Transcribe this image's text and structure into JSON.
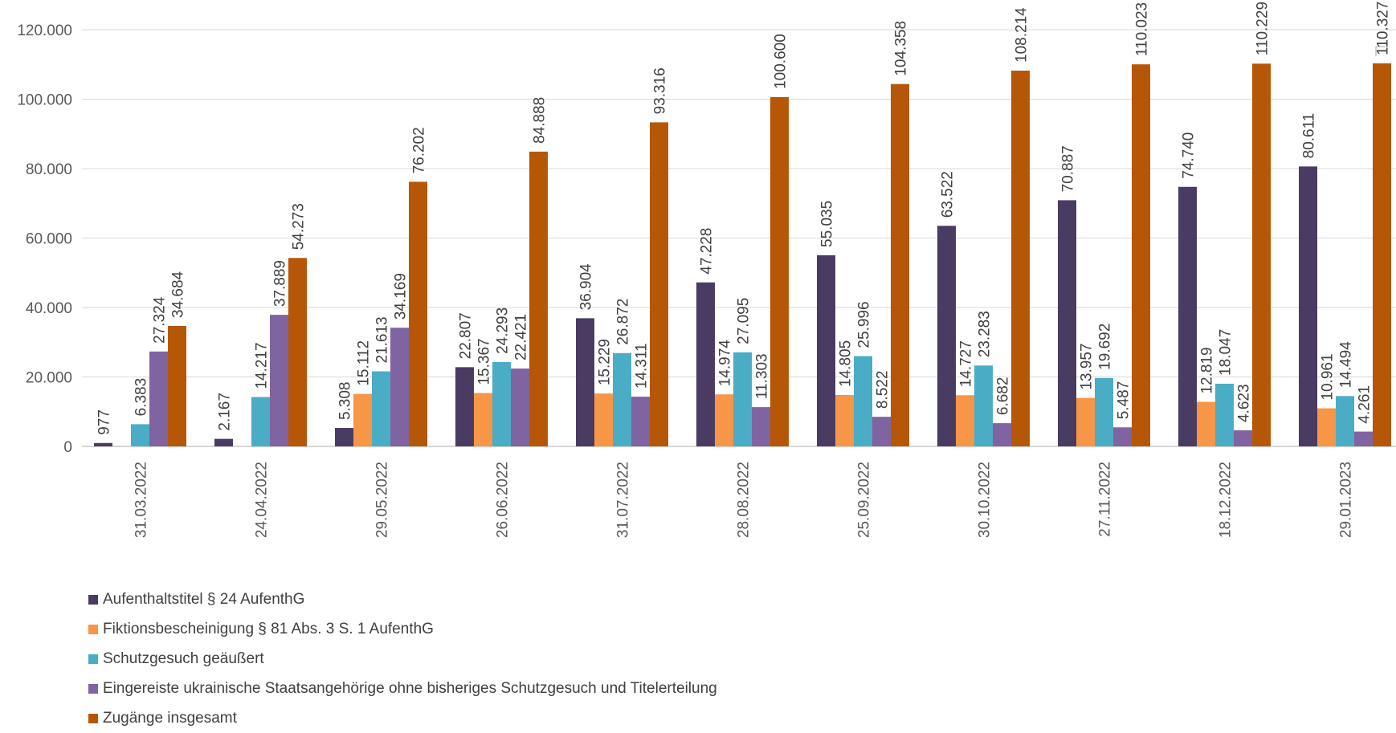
{
  "chart_data": {
    "type": "bar",
    "categories": [
      "31.03.2022",
      "24.04.2022",
      "29.05.2022",
      "26.06.2022",
      "31.07.2022",
      "28.08.2022",
      "25.09.2022",
      "30.10.2022",
      "27.11.2022",
      "18.12.2022",
      "29.01.2023"
    ],
    "ylim": [
      0,
      120000
    ],
    "yticks": [
      0,
      20000,
      40000,
      60000,
      80000,
      100000,
      120000
    ],
    "ytick_labels": [
      "0",
      "20.000",
      "40.000",
      "60.000",
      "80.000",
      "100.000",
      "120.000"
    ],
    "grid": true,
    "legend_position": "bottom-left",
    "series": [
      {
        "name": "Aufenthaltstitel § 24 AufenthG",
        "color": "#4a3b63",
        "values": [
          977,
          2167,
          5308,
          22807,
          36904,
          47228,
          55035,
          63522,
          70887,
          74740,
          80611
        ],
        "labels": [
          "977",
          "2.167",
          "5.308",
          "22.807",
          "36.904",
          "47.228",
          "55.035",
          "63.522",
          "70.887",
          "74.740",
          "80.611"
        ]
      },
      {
        "name": "Fiktionsbescheinigung § 81 Abs. 3 S. 1 AufenthG",
        "color": "#f79646",
        "values": [
          null,
          null,
          15112,
          15367,
          15229,
          14974,
          14805,
          14727,
          13957,
          12819,
          10961
        ],
        "labels": [
          "",
          "",
          "15.112",
          "15.367",
          "15.229",
          "14.974",
          "14.805",
          "14.727",
          "13.957",
          "12.819",
          "10.961"
        ]
      },
      {
        "name": "Schutzgesuch geäußert",
        "color": "#4bacc6",
        "values": [
          6383,
          14217,
          21613,
          24293,
          26872,
          27095,
          25996,
          23283,
          19692,
          18047,
          14494
        ],
        "labels": [
          "6.383",
          "14.217",
          "21.613",
          "24.293",
          "26.872",
          "27.095",
          "25.996",
          "23.283",
          "19.692",
          "18.047",
          "14.494"
        ]
      },
      {
        "name": "Eingereiste ukrainische Staatsangehörige ohne bisheriges Schutzgesuch und Titelerteilung",
        "color": "#8064a2",
        "values": [
          27324,
          37889,
          34169,
          22421,
          14311,
          11303,
          8522,
          6682,
          5487,
          4623,
          4261
        ],
        "labels": [
          "27.324",
          "37.889",
          "34.169",
          "22.421",
          "14.311",
          "11.303",
          "8.522",
          "6.682",
          "5.487",
          "4.623",
          "4.261"
        ]
      },
      {
        "name": "Zugänge insgesamt",
        "color": "#b65708",
        "values": [
          34684,
          54273,
          76202,
          84888,
          93316,
          100600,
          104358,
          108214,
          110023,
          110229,
          110327
        ],
        "labels": [
          "34.684",
          "54.273",
          "76.202",
          "84.888",
          "93.316",
          "100.600",
          "104.358",
          "108.214",
          "110.023",
          "110.229",
          "110.327"
        ]
      }
    ]
  }
}
